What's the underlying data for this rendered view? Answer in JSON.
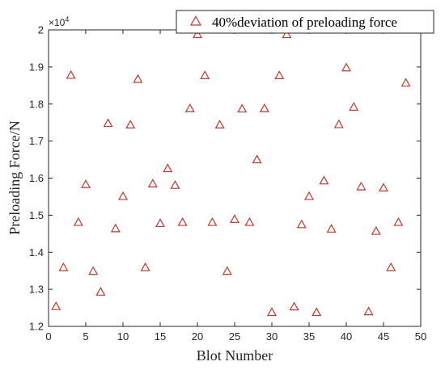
{
  "chart_data": {
    "type": "scatter",
    "xlabel": "Blot Number",
    "ylabel": "Preloading Force/N",
    "y_exponent_label": "×10",
    "y_exponent_power": "4",
    "xlim": [
      0,
      50
    ],
    "ylim": [
      12000,
      20000
    ],
    "x_ticks": [
      0,
      5,
      10,
      15,
      20,
      25,
      30,
      35,
      40,
      45,
      50
    ],
    "y_ticks": [
      12000,
      13000,
      14000,
      15000,
      16000,
      17000,
      18000,
      19000,
      20000
    ],
    "x_tick_labels": [
      "0",
      "5",
      "10",
      "15",
      "20",
      "25",
      "30",
      "35",
      "40",
      "45",
      "50"
    ],
    "y_tick_labels": [
      "1.2",
      "1.3",
      "1.4",
      "1.5",
      "1.6",
      "1.7",
      "1.8",
      "1.9",
      "2"
    ],
    "grid": false,
    "legend_position": "top-right",
    "marker": "open-triangle",
    "marker_color": "#c0392b",
    "series": [
      {
        "name": "40%deviation of preloading force",
        "x": [
          1,
          2,
          3,
          4,
          5,
          6,
          7,
          8,
          9,
          10,
          11,
          12,
          13,
          14,
          15,
          16,
          17,
          18,
          19,
          20,
          21,
          22,
          23,
          24,
          25,
          26,
          27,
          28,
          29,
          30,
          31,
          32,
          33,
          34,
          35,
          36,
          37,
          38,
          39,
          40,
          41,
          42,
          43,
          44,
          45,
          46,
          47,
          48
        ],
        "y": [
          12530,
          13580,
          18770,
          14800,
          15820,
          13480,
          12920,
          17470,
          14630,
          15500,
          17430,
          18660,
          13580,
          15840,
          14770,
          16250,
          15800,
          14800,
          17870,
          19870,
          18760,
          14800,
          17430,
          13480,
          14880,
          17860,
          14800,
          16490,
          17870,
          12370,
          18760,
          19870,
          12520,
          14740,
          15500,
          12370,
          15920,
          14620,
          17440,
          18970,
          17910,
          15760,
          12390,
          14560,
          15730,
          13580,
          14800,
          18560
        ]
      }
    ]
  }
}
